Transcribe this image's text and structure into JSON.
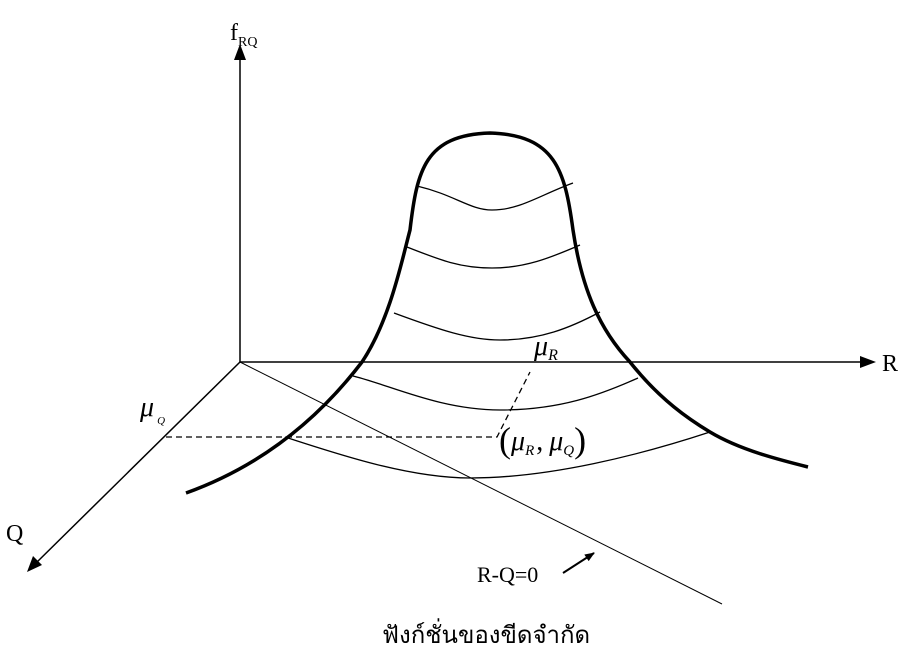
{
  "axes": {
    "vertical": {
      "label_main": "f",
      "label_sub": "RQ"
    },
    "horizontal": {
      "label": "R"
    },
    "depth": {
      "label": "Q"
    }
  },
  "labels": {
    "mu_r": {
      "symbol": "μ",
      "sub": "R"
    },
    "mu_q": {
      "symbol": "μ",
      "sub": "Q"
    },
    "mean_point": {
      "open": "(",
      "mu1": "μ",
      "sub1": "R",
      "comma": ",",
      "mu2": "μ",
      "sub2": "Q",
      "close": ")"
    },
    "limit_line": "R-Q=0",
    "caption": "ฟังก์ชั่นของขีดจำกัด"
  },
  "colors": {
    "stroke": "#000000",
    "background": "#ffffff"
  }
}
